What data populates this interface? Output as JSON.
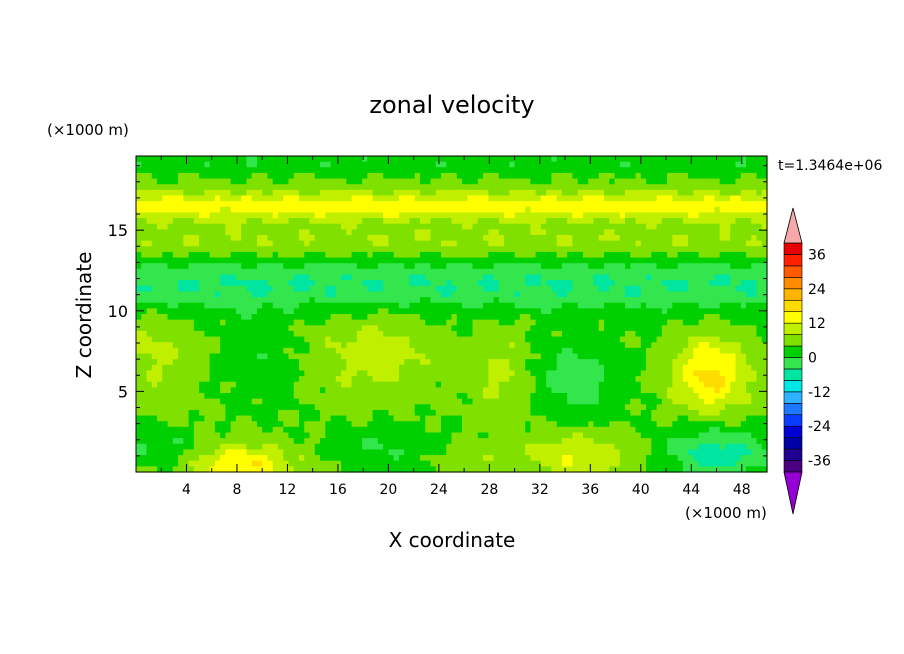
{
  "chart_data": {
    "type": "heatmap",
    "title": "zonal velocity",
    "xlabel": "X coordinate",
    "ylabel": "Z coordinate",
    "x_unit": "(×1000 m)",
    "y_unit": "(×1000 m)",
    "time_label": "t=1.3464e+06",
    "xlim": [
      0,
      50
    ],
    "ylim": [
      0,
      19.6
    ],
    "x_ticks": [
      4,
      8,
      12,
      16,
      20,
      24,
      28,
      32,
      36,
      40,
      44,
      48
    ],
    "y_ticks": [
      5,
      10,
      15
    ],
    "colorbar": {
      "levels": [
        -40,
        -36,
        -32,
        -28,
        -24,
        -20,
        -16,
        -12,
        -8,
        -4,
        0,
        4,
        8,
        12,
        16,
        20,
        24,
        28,
        32,
        36,
        40
      ],
      "labels": [
        36,
        24,
        12,
        0,
        -12,
        -24,
        -36
      ],
      "colors": [
        "#4b0082",
        "#22008f",
        "#0000a6",
        "#0000d2",
        "#0a3cff",
        "#1e78ff",
        "#2eb2ff",
        "#00e5e5",
        "#00e6a0",
        "#33e64d",
        "#00d000",
        "#80e000",
        "#c0f000",
        "#ffff00",
        "#ffdc00",
        "#ffb400",
        "#ff8c00",
        "#ff5a00",
        "#ff2000",
        "#e60000"
      ],
      "over_color": "#f7a8a8",
      "under_color": "#9400d3"
    },
    "features": [
      {
        "x": 8.5,
        "z": 0.4,
        "sx": 4.0,
        "sz": 1.3,
        "v": 12
      },
      {
        "x": 35,
        "z": 1.0,
        "sx": 4.5,
        "sz": 1.6,
        "v": 8
      },
      {
        "x": 26,
        "z": 0.8,
        "sx": 2.5,
        "sz": 1.0,
        "v": 4
      },
      {
        "x": 45.5,
        "z": 6.0,
        "sx": 3.0,
        "sz": 2.4,
        "v": 13
      },
      {
        "x": 19,
        "z": 7.2,
        "sx": 5.0,
        "sz": 2.6,
        "v": 6
      },
      {
        "x": 29,
        "z": 6.0,
        "sx": 2.2,
        "sz": 3.0,
        "v": 5
      },
      {
        "x": 1.5,
        "z": 7.5,
        "sx": 3.0,
        "sz": 2.6,
        "v": 5
      },
      {
        "x": 3,
        "z": 3.5,
        "sx": 3.0,
        "sz": 1.5,
        "v": 2
      },
      {
        "x": 35,
        "z": 5.5,
        "sx": 3.5,
        "sz": 2.5,
        "v": -6
      },
      {
        "x": 46,
        "z": 1.2,
        "sx": 4.5,
        "sz": 1.6,
        "v": -10
      },
      {
        "x": 2,
        "z": 1.8,
        "sx": 3.0,
        "sz": 1.4,
        "v": -5
      },
      {
        "x": 20,
        "z": 1.6,
        "sx": 4.0,
        "sz": 1.2,
        "v": -4
      },
      {
        "x": 10,
        "z": 7.0,
        "sx": 3.0,
        "sz": 3.0,
        "v": -3
      }
    ],
    "bands": [
      {
        "z": 11.6,
        "s": 1.6,
        "v": -8
      },
      {
        "z": 16.5,
        "s": 0.9,
        "v": 10
      },
      {
        "z": 14.3,
        "s": 1.0,
        "v": 4
      },
      {
        "z": 19.2,
        "s": 0.6,
        "v": -3
      }
    ]
  }
}
